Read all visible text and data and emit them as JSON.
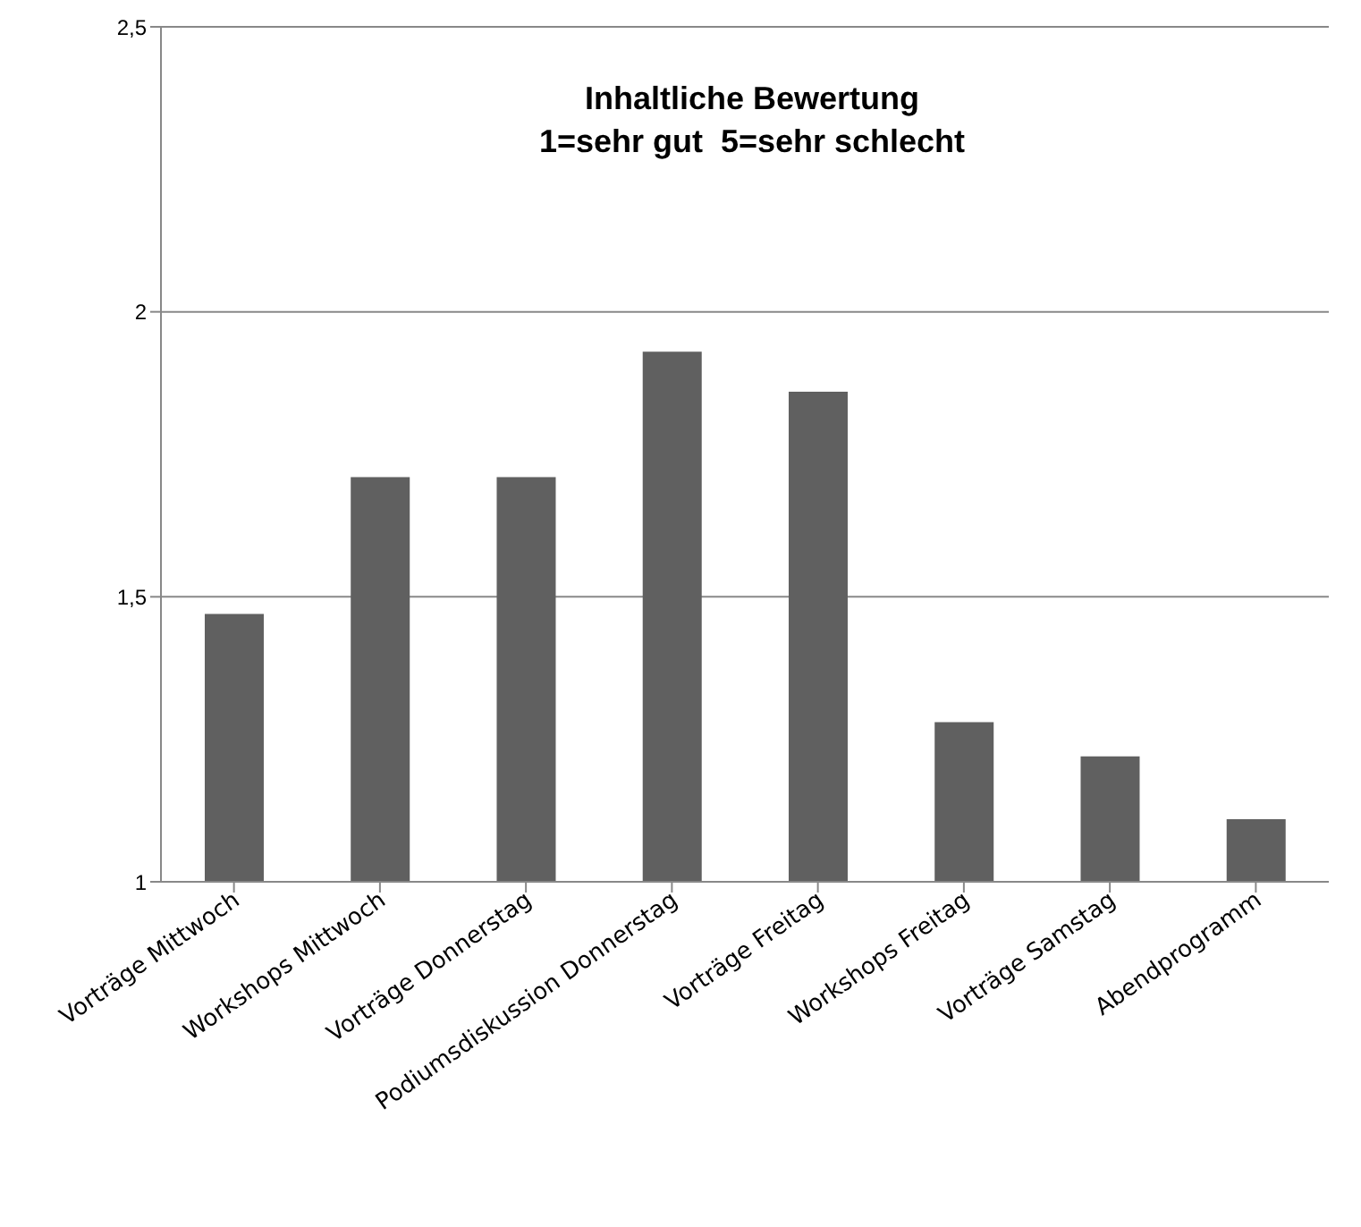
{
  "chart_data": {
    "type": "bar",
    "title": "Inhaltliche Bewertung\n1=sehr gut  5=sehr schlecht",
    "categories": [
      "Vorträge Mittwoch",
      "Workshops Mittwoch",
      "Vorträge Donnerstag",
      "Podiumsdiskussion Donnerstag",
      "Vorträge Freitag",
      "Workshops Freitag",
      "Vorträge Samstag",
      "Abendprogramm"
    ],
    "values": [
      1.47,
      1.71,
      1.71,
      1.93,
      1.86,
      1.28,
      1.22,
      1.11
    ],
    "color": "#606060",
    "ylim": [
      1,
      2.5
    ],
    "yticks": [
      {
        "value": 1,
        "label": "1"
      },
      {
        "value": 1.5,
        "label": "1,5"
      },
      {
        "value": 2,
        "label": "2"
      },
      {
        "value": 2.5,
        "label": "2,5"
      }
    ],
    "grid": "y"
  }
}
